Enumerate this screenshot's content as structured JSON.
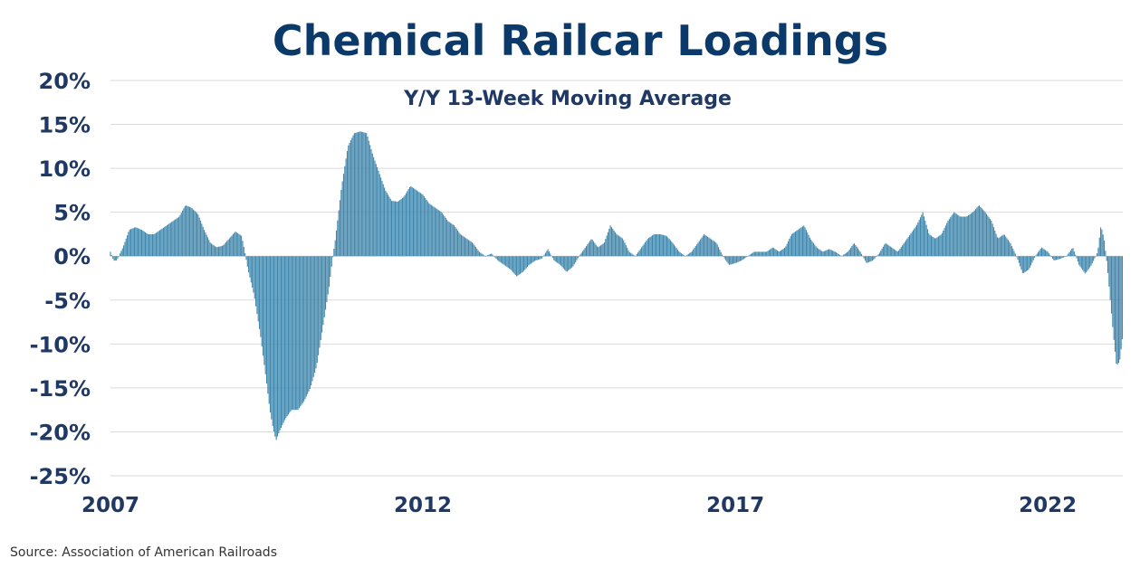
{
  "title": "Chemical Railcar Loadings",
  "source": "Source:  Association of American Railroads",
  "colors": {
    "bar": "#3f86ac",
    "text": "#1f3864",
    "title": "#0b3a6a",
    "grid": "#d9d9d9"
  },
  "chart_data": {
    "type": "bar",
    "subtitle": "Y/Y 13-Week Moving Average",
    "x_start": 2007.0,
    "x_end": 2023.2,
    "x_ticks": [
      "2007",
      "2012",
      "2017",
      "2022"
    ],
    "y_ticks": [
      "20%",
      "15%",
      "10%",
      "5%",
      "0%",
      "-5%",
      "-10%",
      "-15%",
      "-20%",
      "-25%"
    ],
    "ylim": [
      -25,
      20
    ],
    "grid": true,
    "series_points": [
      [
        2007.0,
        0.5
      ],
      [
        2007.05,
        -0.5
      ],
      [
        2007.1,
        -0.5
      ],
      [
        2007.2,
        1.0
      ],
      [
        2007.3,
        3.0
      ],
      [
        2007.4,
        3.3
      ],
      [
        2007.5,
        3.0
      ],
      [
        2007.6,
        2.5
      ],
      [
        2007.7,
        2.5
      ],
      [
        2007.8,
        3.0
      ],
      [
        2007.9,
        3.5
      ],
      [
        2008.0,
        4.0
      ],
      [
        2008.1,
        4.5
      ],
      [
        2008.2,
        5.8
      ],
      [
        2008.3,
        5.5
      ],
      [
        2008.4,
        4.8
      ],
      [
        2008.5,
        3.0
      ],
      [
        2008.6,
        1.5
      ],
      [
        2008.7,
        1.0
      ],
      [
        2008.8,
        1.2
      ],
      [
        2008.9,
        2.0
      ],
      [
        2009.0,
        2.8
      ],
      [
        2009.1,
        2.3
      ],
      [
        2009.15,
        0.5
      ],
      [
        2009.2,
        -1.5
      ],
      [
        2009.3,
        -4.5
      ],
      [
        2009.4,
        -9.0
      ],
      [
        2009.5,
        -14.5
      ],
      [
        2009.55,
        -17.5
      ],
      [
        2009.6,
        -19.5
      ],
      [
        2009.65,
        -21.0
      ],
      [
        2009.7,
        -20.0
      ],
      [
        2009.8,
        -18.5
      ],
      [
        2009.9,
        -17.5
      ],
      [
        2010.0,
        -17.5
      ],
      [
        2010.1,
        -16.5
      ],
      [
        2010.2,
        -15.0
      ],
      [
        2010.3,
        -12.5
      ],
      [
        2010.4,
        -8.0
      ],
      [
        2010.5,
        -3.5
      ],
      [
        2010.55,
        -0.5
      ],
      [
        2010.6,
        2.0
      ],
      [
        2010.7,
        8.0
      ],
      [
        2010.8,
        12.5
      ],
      [
        2010.9,
        14.0
      ],
      [
        2011.0,
        14.2
      ],
      [
        2011.1,
        14.0
      ],
      [
        2011.2,
        11.5
      ],
      [
        2011.3,
        9.5
      ],
      [
        2011.4,
        7.5
      ],
      [
        2011.5,
        6.3
      ],
      [
        2011.6,
        6.2
      ],
      [
        2011.7,
        6.8
      ],
      [
        2011.8,
        8.0
      ],
      [
        2011.9,
        7.5
      ],
      [
        2012.0,
        7.0
      ],
      [
        2012.1,
        6.0
      ],
      [
        2012.2,
        5.5
      ],
      [
        2012.3,
        5.0
      ],
      [
        2012.4,
        4.0
      ],
      [
        2012.5,
        3.5
      ],
      [
        2012.6,
        2.5
      ],
      [
        2012.7,
        2.0
      ],
      [
        2012.8,
        1.5
      ],
      [
        2012.9,
        0.5
      ],
      [
        2013.0,
        0.0
      ],
      [
        2013.1,
        0.3
      ],
      [
        2013.2,
        -0.5
      ],
      [
        2013.3,
        -1.0
      ],
      [
        2013.4,
        -1.5
      ],
      [
        2013.5,
        -2.3
      ],
      [
        2013.6,
        -1.8
      ],
      [
        2013.7,
        -1.0
      ],
      [
        2013.8,
        -0.5
      ],
      [
        2013.9,
        -0.3
      ],
      [
        2014.0,
        0.8
      ],
      [
        2014.1,
        -0.5
      ],
      [
        2014.2,
        -1.0
      ],
      [
        2014.3,
        -1.8
      ],
      [
        2014.4,
        -1.2
      ],
      [
        2014.5,
        0.0
      ],
      [
        2014.6,
        1.0
      ],
      [
        2014.7,
        2.0
      ],
      [
        2014.8,
        1.0
      ],
      [
        2014.9,
        1.5
      ],
      [
        2015.0,
        3.5
      ],
      [
        2015.1,
        2.5
      ],
      [
        2015.2,
        2.0
      ],
      [
        2015.3,
        0.5
      ],
      [
        2015.4,
        0.0
      ],
      [
        2015.5,
        1.0
      ],
      [
        2015.6,
        2.0
      ],
      [
        2015.7,
        2.5
      ],
      [
        2015.8,
        2.5
      ],
      [
        2015.9,
        2.3
      ],
      [
        2016.0,
        1.5
      ],
      [
        2016.1,
        0.5
      ],
      [
        2016.2,
        0.0
      ],
      [
        2016.3,
        0.5
      ],
      [
        2016.4,
        1.5
      ],
      [
        2016.5,
        2.5
      ],
      [
        2016.6,
        2.0
      ],
      [
        2016.7,
        1.5
      ],
      [
        2016.8,
        0.0
      ],
      [
        2016.9,
        -1.0
      ],
      [
        2017.0,
        -0.8
      ],
      [
        2017.1,
        -0.5
      ],
      [
        2017.2,
        0.0
      ],
      [
        2017.3,
        0.5
      ],
      [
        2017.4,
        0.5
      ],
      [
        2017.5,
        0.5
      ],
      [
        2017.6,
        1.0
      ],
      [
        2017.7,
        0.5
      ],
      [
        2017.8,
        1.0
      ],
      [
        2017.9,
        2.5
      ],
      [
        2018.0,
        3.0
      ],
      [
        2018.1,
        3.5
      ],
      [
        2018.2,
        2.0
      ],
      [
        2018.3,
        1.0
      ],
      [
        2018.4,
        0.5
      ],
      [
        2018.5,
        0.8
      ],
      [
        2018.6,
        0.5
      ],
      [
        2018.7,
        0.0
      ],
      [
        2018.8,
        0.5
      ],
      [
        2018.9,
        1.5
      ],
      [
        2019.0,
        0.5
      ],
      [
        2019.1,
        -0.8
      ],
      [
        2019.2,
        -0.5
      ],
      [
        2019.3,
        0.3
      ],
      [
        2019.4,
        1.5
      ],
      [
        2019.5,
        1.0
      ],
      [
        2019.6,
        0.5
      ],
      [
        2019.7,
        1.5
      ],
      [
        2019.8,
        2.5
      ],
      [
        2019.9,
        3.5
      ],
      [
        2020.0,
        5.0
      ],
      [
        2020.1,
        2.5
      ],
      [
        2020.2,
        2.0
      ],
      [
        2020.3,
        2.5
      ],
      [
        2020.4,
        4.0
      ],
      [
        2020.5,
        5.0
      ],
      [
        2020.6,
        4.5
      ],
      [
        2020.7,
        4.5
      ],
      [
        2020.8,
        5.0
      ],
      [
        2020.9,
        5.8
      ],
      [
        2021.0,
        5.0
      ],
      [
        2021.1,
        4.0
      ],
      [
        2021.2,
        2.0
      ],
      [
        2021.3,
        2.5
      ],
      [
        2021.4,
        1.5
      ],
      [
        2021.5,
        0.0
      ],
      [
        2021.6,
        -2.0
      ],
      [
        2021.7,
        -1.5
      ],
      [
        2021.8,
        0.0
      ],
      [
        2021.9,
        1.0
      ],
      [
        2022.0,
        0.5
      ],
      [
        2022.1,
        -0.5
      ],
      [
        2022.2,
        -0.3
      ],
      [
        2022.3,
        0.0
      ],
      [
        2022.4,
        1.0
      ],
      [
        2022.5,
        -1.0
      ],
      [
        2022.6,
        -2.0
      ],
      [
        2022.7,
        -1.0
      ],
      [
        2022.8,
        0.5
      ],
      [
        2022.85,
        3.5
      ],
      [
        2022.9,
        2.0
      ],
      [
        2022.95,
        -1.0
      ],
      [
        2023.0,
        -5.0
      ],
      [
        2023.05,
        -9.0
      ],
      [
        2023.1,
        -12.5
      ],
      [
        2023.15,
        -12.0
      ],
      [
        2023.2,
        -9.0
      ]
    ]
  }
}
